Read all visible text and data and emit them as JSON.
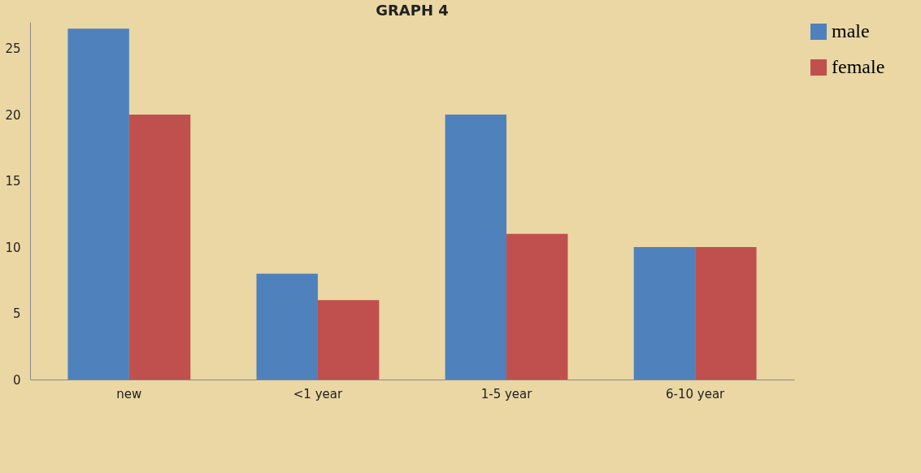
{
  "chart_data": {
    "type": "bar",
    "title": "GRAPH 4",
    "categories": [
      "new",
      "<1 year",
      "1-5 year",
      "6-10 year"
    ],
    "series": [
      {
        "name": "male",
        "color": "#4f81bd",
        "values": [
          26.5,
          8,
          20,
          10
        ]
      },
      {
        "name": "female",
        "color": "#c0504d",
        "values": [
          20,
          6,
          11,
          10
        ]
      }
    ],
    "ylim": [
      0,
      27
    ],
    "yticks": [
      0,
      5,
      10,
      15,
      20,
      25
    ],
    "grid": false,
    "legend": "right"
  }
}
